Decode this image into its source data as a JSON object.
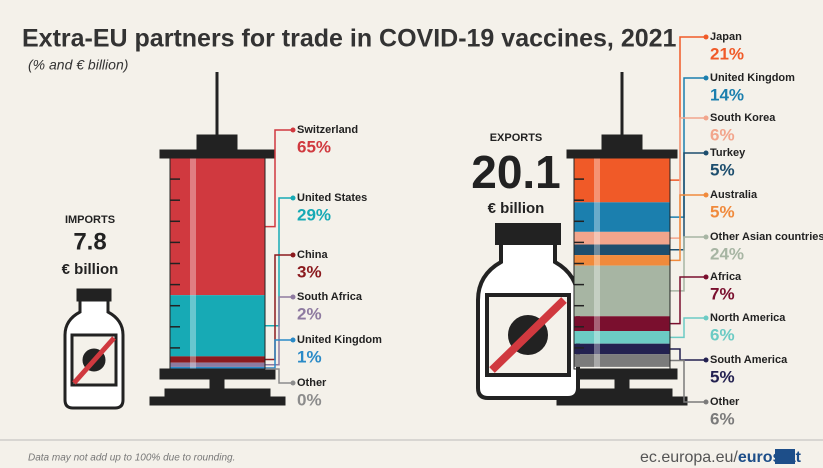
{
  "title": "Extra-EU partners for trade in COVID-19 vaccines, 2021",
  "subtitle": "(% and € billion)",
  "footnote": "Data may not add up to 100% due to rounding.",
  "source_domain": "ec.europa.eu/",
  "source_brand": "eurostat",
  "chart_data": [
    {
      "type": "stacked-bar",
      "label": "IMPORTS",
      "total": 7.8,
      "unit": "€ billion",
      "categories": [
        "Switzerland",
        "United States",
        "China",
        "South Africa",
        "United Kingdom",
        "Other"
      ],
      "values": [
        65,
        29,
        3,
        2,
        1,
        0
      ],
      "value_labels": [
        "65%",
        "29%",
        "3%",
        "2%",
        "1%",
        "0%"
      ],
      "colors": [
        "#d0393f",
        "#17aab5",
        "#8b1a1e",
        "#8e7aa0",
        "#2a8ac7",
        "#8c8c8c"
      ]
    },
    {
      "type": "stacked-bar",
      "label": "EXPORTS",
      "total": 20.1,
      "unit": "€ billion",
      "categories": [
        "Japan",
        "United Kingdom",
        "South Korea",
        "Turkey",
        "Australia",
        "Other Asian countries",
        "Africa",
        "North America",
        "South America",
        "Other"
      ],
      "values": [
        21,
        14,
        6,
        5,
        5,
        24,
        7,
        6,
        5,
        6
      ],
      "value_labels": [
        "21%",
        "14%",
        "6%",
        "5%",
        "5%",
        "24%",
        "7%",
        "6%",
        "5%",
        "6%"
      ],
      "colors": [
        "#f05a28",
        "#1b7fae",
        "#f2a58c",
        "#1d4e6e",
        "#f08a3c",
        "#a7b5a3",
        "#7a0f2e",
        "#6ccbc4",
        "#232150",
        "#7b7b7b"
      ]
    }
  ]
}
